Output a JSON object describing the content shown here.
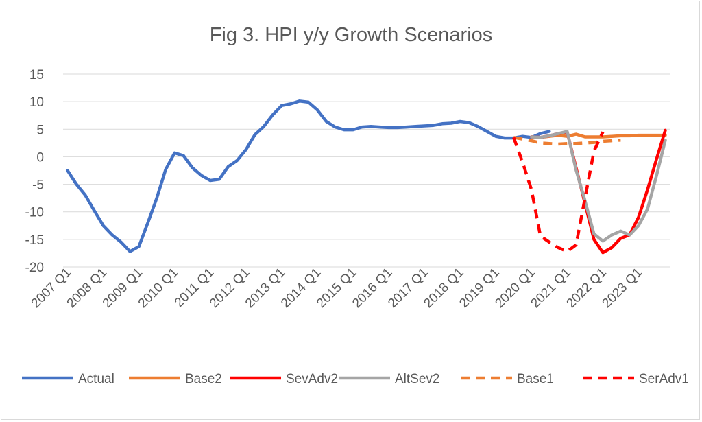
{
  "chart_data": {
    "type": "line",
    "title": "Fig 3. HPI y/y Growth Scenarios",
    "xlabel": "",
    "ylabel": "",
    "ylim": [
      -20,
      15
    ],
    "yticks": [
      15,
      10,
      5,
      0,
      -5,
      -10,
      -15,
      -20
    ],
    "grid": true,
    "legend_position": "bottom",
    "x_tick_labels": [
      "2007 Q1",
      "2008 Q1",
      "2009 Q1",
      "2010 Q1",
      "2011 Q1",
      "2012 Q1",
      "2013 Q1",
      "2014 Q1",
      "2015 Q1",
      "2016 Q1",
      "2017 Q1",
      "2018 Q1",
      "2019 Q1",
      "2020 Q1",
      "2021 Q1",
      "2022 Q1",
      "2023 Q1"
    ],
    "series": [
      {
        "name": "Actual",
        "color": "#4472C4",
        "dash": false,
        "start": "2007 Q1",
        "values": [
          -2.5,
          -5,
          -7,
          -9.8,
          -12.5,
          -14.2,
          -15.5,
          -17.2,
          -16.3,
          -12,
          -7.5,
          -2.3,
          0.7,
          0.2,
          -2,
          -3.4,
          -4.3,
          -4.1,
          -1.8,
          -0.7,
          1.3,
          4,
          5.5,
          7.6,
          9.3,
          9.6,
          10.1,
          9.9,
          8.5,
          6.4,
          5.4,
          4.9,
          4.9,
          5.4,
          5.5,
          5.4,
          5.3,
          5.3,
          5.4,
          5.5,
          5.6,
          5.7,
          6,
          6.1,
          6.4,
          6.2,
          5.5,
          4.6,
          3.7,
          3.4,
          3.4,
          3.7,
          3.5,
          4.2,
          4.6
        ]
      },
      {
        "name": "Base2",
        "color": "#ED7D31",
        "dash": false,
        "start": "2020 Q1",
        "values": [
          3.6,
          3.5,
          3.7,
          3.9,
          3.7,
          4.1,
          3.6,
          3.6,
          3.6,
          3.7,
          3.8,
          3.8,
          3.9,
          3.9,
          3.9,
          3.9
        ]
      },
      {
        "name": "SevAdv2",
        "color": "#FF0000",
        "dash": false,
        "start": "2020 Q1",
        "values": [
          3.6,
          3.5,
          3.8,
          4.2,
          4.5,
          -2,
          -8.5,
          -15,
          -17.4,
          -16.5,
          -14.8,
          -14.2,
          -11,
          -6,
          -0.5,
          4.8
        ]
      },
      {
        "name": "AltSev2",
        "color": "#A5A5A5",
        "dash": false,
        "start": "2020 Q1",
        "values": [
          3.6,
          3.5,
          3.8,
          4.2,
          4.6,
          -2.4,
          -8,
          -14,
          -15.3,
          -14.2,
          -13.5,
          -14.2,
          -12.5,
          -9.5,
          -3.5,
          3
        ]
      },
      {
        "name": "Base1",
        "color": "#ED7D31",
        "dash": true,
        "start": "2019 Q3",
        "values": [
          3.5,
          3.2,
          2.9,
          2.5,
          2.4,
          2.3,
          2.4,
          2.4,
          2.5,
          2.6,
          2.8,
          2.9,
          3
        ]
      },
      {
        "name": "SerAdv1",
        "color": "#FF0000",
        "dash": true,
        "start": "2019 Q3",
        "values": [
          3.5,
          -1,
          -6,
          -14.4,
          -15.5,
          -16.5,
          -17.2,
          -16,
          -7.5,
          1,
          4.5
        ]
      }
    ]
  }
}
